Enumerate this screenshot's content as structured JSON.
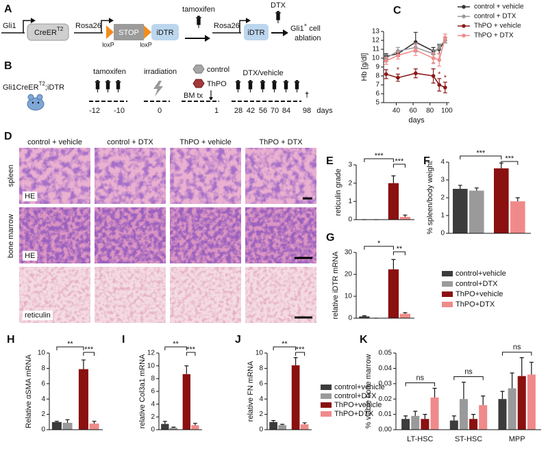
{
  "panel_labels": [
    "A",
    "B",
    "C",
    "D",
    "E",
    "F",
    "G",
    "H",
    "I",
    "J",
    "K"
  ],
  "diagram_a": {
    "gli1": "Gli1",
    "creer": "CreER",
    "t2": "T2",
    "rosa26_1": "Rosa26",
    "stop": "STOP",
    "idtr_1": "iDTR",
    "loxp_1": "loxP",
    "loxp_2": "loxP",
    "tamoxifen": "tamoxifen",
    "rosa26_2": "Rosa26",
    "idtr_2": "iDTR",
    "dtx": "DTX",
    "result_gli1": "Gli1",
    "result_plus": "+",
    "result_cell": " cell",
    "result_ablation": "ablation"
  },
  "diagram_b": {
    "mouse": "Gli1CreER",
    "mouse_t2": "T2",
    "mouse_idtr": ";iDTR",
    "tamoxifen": "tamoxifen",
    "irradiation": "irradiation",
    "control": "control",
    "thpo": "ThPO",
    "bm_tx": "BM tx",
    "dtx_vehicle": "DTX/vehicle",
    "timeline": [
      "-12",
      "-10",
      "0",
      "1",
      "28",
      "42",
      "56",
      "70",
      "84",
      "98"
    ],
    "dagger": "†",
    "days": "days"
  },
  "histology": {
    "columns": [
      "control + vehicle",
      "control + DTX",
      "ThPO + vehicle",
      "ThPO + DTX"
    ],
    "rows": [
      "spleen",
      "bone marrow"
    ],
    "stains": [
      "HE",
      "HE",
      "reticulin"
    ]
  },
  "groups": [
    {
      "name": "control+vehicle",
      "color": "#3c3c3c"
    },
    {
      "name": "control+DTX",
      "color": "#9a9a9a"
    },
    {
      "name": "ThPO+vehicle",
      "color": "#8b1010"
    },
    {
      "name": "ThPO+DTX",
      "color": "#f08a8a"
    }
  ],
  "chart_data": [
    {
      "type": "line",
      "ylabel": "Hb [g/dl]",
      "xlabel": "days",
      "x": [
        28,
        42,
        63,
        84,
        91,
        98
      ],
      "xlim": [
        25,
        103
      ],
      "xticks": [
        40,
        60,
        80,
        100
      ],
      "ylim": [
        5,
        13
      ],
      "yticks": [
        5,
        6,
        7,
        8,
        9,
        10,
        11,
        12,
        13
      ],
      "series": [
        {
          "name": "control + vehicle",
          "color": "#333333",
          "values": [
            10.2,
            10.5,
            11.8,
            10.8,
            11.0,
            12.0
          ],
          "errors": [
            0.3,
            0.3,
            1.1,
            0.4,
            0.5,
            0.3
          ]
        },
        {
          "name": "control + DTX",
          "color": "#999999",
          "values": [
            10.0,
            10.8,
            11.2,
            10.5,
            11.3,
            12.0
          ],
          "errors": [
            0.4,
            0.4,
            0.5,
            0.4,
            0.3,
            0.3
          ]
        },
        {
          "name": "ThPO + vehicle",
          "color": "#8b1a1a",
          "values": [
            8.2,
            7.8,
            8.3,
            8.0,
            7.0,
            6.7
          ],
          "errors": [
            0.5,
            0.4,
            0.5,
            0.8,
            0.7,
            0.6
          ],
          "point_labels": [
            null,
            "*",
            null,
            "*",
            "*",
            "*"
          ]
        },
        {
          "name": "ThPO + DTX",
          "color": "#f28a8a",
          "values": [
            9.7,
            10.3,
            10.9,
            10.0,
            9.8,
            12.3
          ],
          "errors": [
            0.4,
            0.4,
            0.6,
            0.6,
            0.7,
            0.4
          ]
        }
      ]
    },
    {
      "type": "bar",
      "ylabel": "reticulin grade",
      "categories": [
        null,
        null,
        null,
        null
      ],
      "values": [
        0,
        0,
        2.0,
        0.15
      ],
      "errors": [
        0,
        0,
        0.4,
        0.1
      ],
      "ylim": [
        0,
        3
      ],
      "yticks": [
        0,
        1,
        2,
        3
      ],
      "annotations": [
        "***",
        "***"
      ]
    },
    {
      "type": "bar",
      "ylabel": "% spleen/body weight",
      "categories": [
        null,
        null,
        null,
        null
      ],
      "values": [
        2.5,
        2.4,
        3.65,
        1.8
      ],
      "errors": [
        0.2,
        0.15,
        0.3,
        0.2
      ],
      "ylim": [
        0,
        4
      ],
      "yticks": [
        0,
        1,
        2,
        3,
        4
      ],
      "annotations": [
        "***",
        "***"
      ]
    },
    {
      "type": "bar",
      "ylabel": "relative iDTR mRNA",
      "categories": [
        null,
        null,
        null,
        null
      ],
      "values": [
        0.8,
        0,
        22.3,
        2.0
      ],
      "errors": [
        0.3,
        0,
        4.5,
        0.5
      ],
      "ylim": [
        0,
        30
      ],
      "yticks": [
        0,
        10,
        20,
        30
      ],
      "annotations": [
        "*",
        "**"
      ]
    },
    {
      "type": "bar",
      "ylabel": "Relative αSMA mRNA",
      "categories": [
        null,
        null,
        null,
        null
      ],
      "values": [
        1.0,
        0.9,
        7.9,
        0.8
      ],
      "errors": [
        0.1,
        0.4,
        1.2,
        0.3
      ],
      "ylim": [
        0,
        10
      ],
      "yticks": [
        0,
        2,
        4,
        6,
        8,
        10
      ],
      "annotations": [
        "**",
        "***"
      ]
    },
    {
      "type": "bar",
      "ylabel": "relative Col3a1 mRNA",
      "categories": [
        null,
        null,
        null,
        null
      ],
      "values": [
        0.9,
        0.3,
        8.7,
        0.7
      ],
      "errors": [
        0.4,
        0.1,
        1.3,
        0.3
      ],
      "ylim": [
        0,
        12
      ],
      "yticks": [
        0,
        2,
        4,
        6,
        8,
        10,
        12
      ],
      "annotations": [
        "**",
        "***"
      ]
    },
    {
      "type": "bar",
      "ylabel": "relative FN mRNA",
      "categories": [
        null,
        null,
        null,
        null
      ],
      "values": [
        1.0,
        0.6,
        8.4,
        0.7
      ],
      "errors": [
        0.2,
        0.1,
        1.0,
        0.2
      ],
      "ylim": [
        0,
        10
      ],
      "yticks": [
        0,
        2,
        4,
        6,
        8,
        10
      ],
      "annotations": [
        "**",
        "***"
      ]
    },
    {
      "type": "grouped_bar",
      "ylabel": "% viable bone marrow",
      "categories": [
        "LT-HSC",
        "ST-HSC",
        "MPP"
      ],
      "ylim": [
        0,
        0.05
      ],
      "yticks": [
        {
          "value": 0,
          "label": "0.00"
        },
        {
          "value": 0.01,
          "label": "0.01"
        },
        {
          "value": 0.02,
          "label": "0.02"
        },
        {
          "value": 0.03,
          "label": "0.03"
        },
        {
          "value": 0.04,
          "label": "0.04"
        },
        {
          "value": 0.05,
          "label": "0.05"
        }
      ],
      "series": [
        {
          "values": [
            0.007,
            0.006,
            0.02
          ],
          "errors": [
            0.002,
            0.003,
            0.005
          ]
        },
        {
          "values": [
            0.009,
            0.02,
            0.027
          ],
          "errors": [
            0.003,
            0.011,
            0.01
          ]
        },
        {
          "values": [
            0.007,
            0.007,
            0.035
          ],
          "errors": [
            0.003,
            0.003,
            0.012
          ]
        },
        {
          "values": [
            0.021,
            0.016,
            0.036
          ],
          "errors": [
            0.006,
            0.006,
            0.008
          ]
        }
      ],
      "annotations": [
        "ns",
        "ns",
        "ns"
      ]
    }
  ]
}
